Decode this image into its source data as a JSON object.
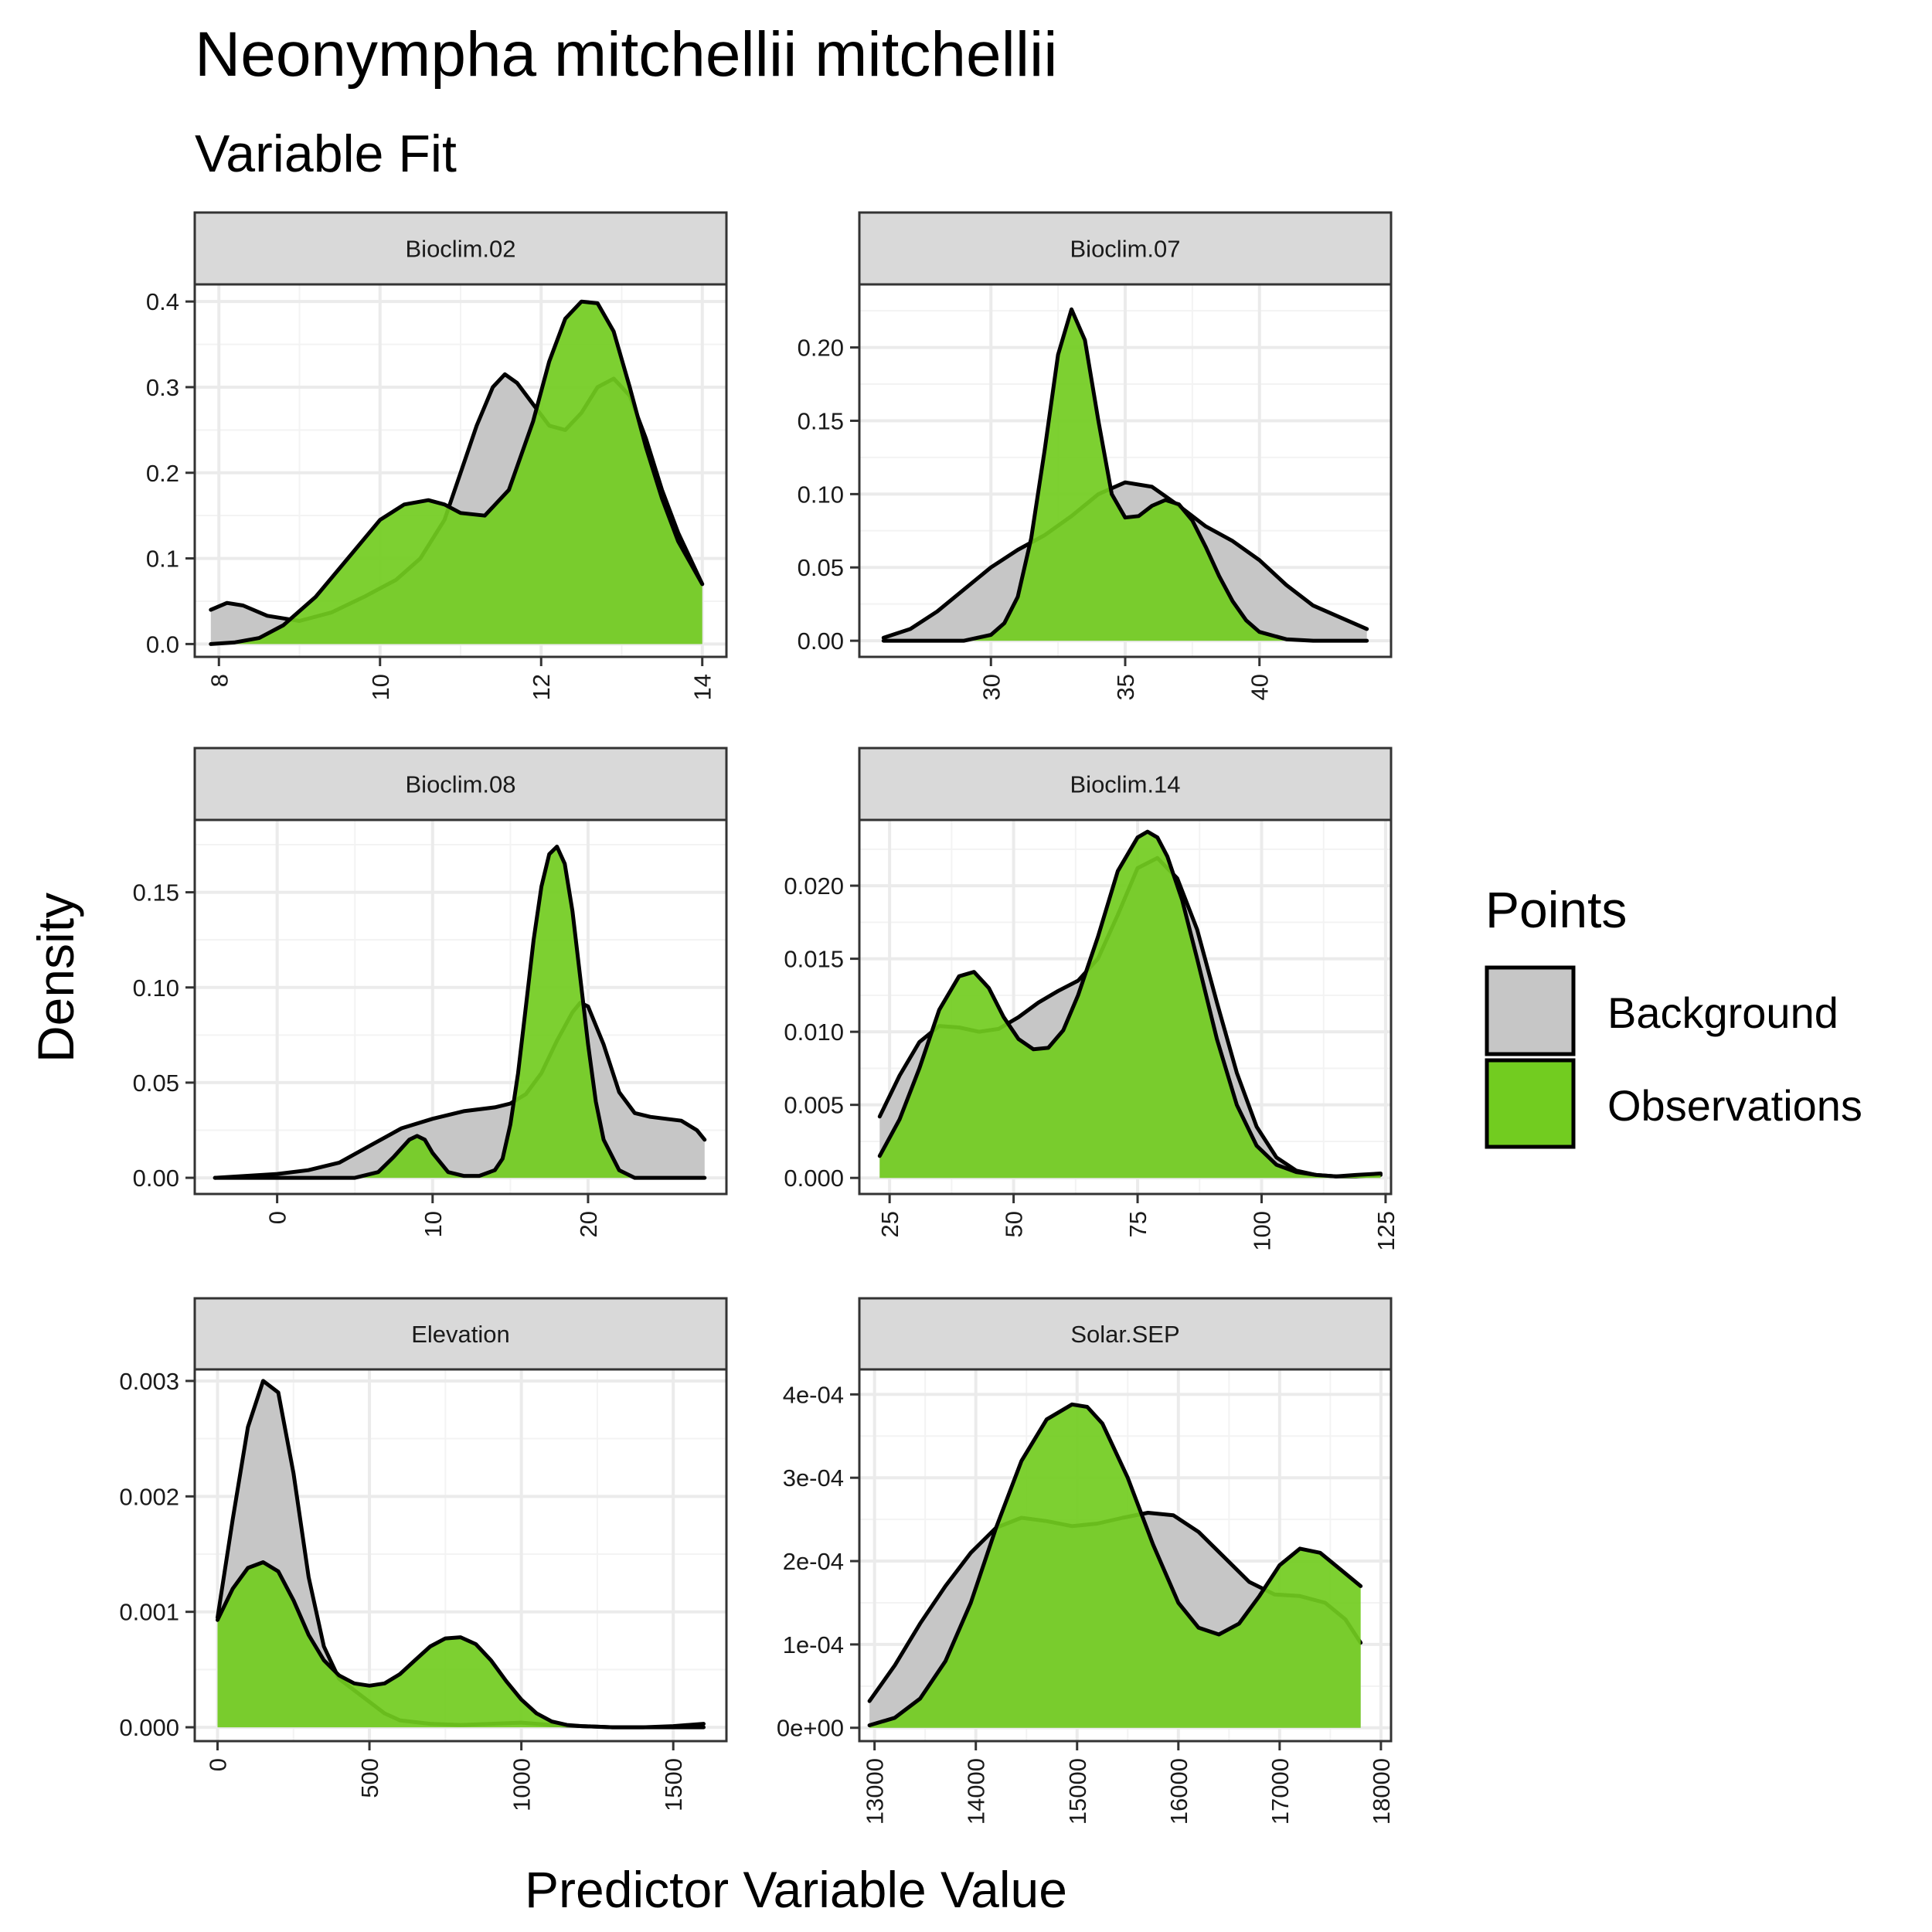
{
  "title": "Neonympha mitchellii mitchellii",
  "subtitle": "Variable Fit",
  "ylabel": "Density",
  "xlabel": "Predictor Variable Value",
  "colors": {
    "background_fill": "#c6c6c6",
    "observations_fill": "#72cc20",
    "outline": "#000000",
    "strip_fill": "#d9d9d9",
    "grid_major": "#ebebeb",
    "grid_minor": "#f3f3f3"
  },
  "legend": {
    "title": "Points",
    "items": [
      {
        "label": "Background",
        "key": "background"
      },
      {
        "label": "Observations",
        "key": "observations"
      }
    ],
    "position": "right"
  },
  "chart_data": [
    {
      "type": "area",
      "panel": "Bioclim.02",
      "xlim": [
        7.7,
        14.3
      ],
      "ylim": [
        -0.015,
        0.42
      ],
      "xticks": [
        8,
        10,
        12,
        14
      ],
      "xtick_labels": [
        "8",
        "10",
        "12",
        "14"
      ],
      "yticks": [
        0,
        0.1,
        0.2,
        0.3,
        0.4
      ],
      "ytick_labels": [
        "0.0",
        "0.1",
        "0.2",
        "0.3",
        "0.4"
      ],
      "grid": true,
      "series": [
        {
          "name": "Background",
          "x": [
            7.9,
            8.1,
            8.3,
            8.6,
            9.0,
            9.4,
            9.8,
            10.2,
            10.5,
            10.8,
            11.0,
            11.2,
            11.4,
            11.55,
            11.7,
            11.9,
            12.1,
            12.3,
            12.5,
            12.7,
            12.9,
            13.1,
            13.3,
            13.5,
            13.7,
            14.0
          ],
          "y": [
            0.04,
            0.048,
            0.045,
            0.033,
            0.027,
            0.037,
            0.055,
            0.075,
            0.1,
            0.145,
            0.2,
            0.255,
            0.3,
            0.315,
            0.305,
            0.28,
            0.255,
            0.25,
            0.27,
            0.3,
            0.31,
            0.29,
            0.24,
            0.18,
            0.13,
            0.07
          ]
        },
        {
          "name": "Observations",
          "x": [
            7.9,
            8.2,
            8.5,
            8.8,
            9.2,
            9.6,
            10.0,
            10.3,
            10.6,
            10.8,
            11.0,
            11.3,
            11.6,
            11.9,
            12.1,
            12.3,
            12.5,
            12.7,
            12.9,
            13.1,
            13.3,
            13.5,
            13.7,
            14.0
          ],
          "y": [
            0.0,
            0.002,
            0.007,
            0.022,
            0.055,
            0.1,
            0.145,
            0.163,
            0.168,
            0.163,
            0.153,
            0.15,
            0.18,
            0.26,
            0.33,
            0.38,
            0.4,
            0.398,
            0.365,
            0.3,
            0.23,
            0.17,
            0.12,
            0.07
          ]
        }
      ]
    },
    {
      "type": "area",
      "panel": "Bioclim.07",
      "xlim": [
        25.1,
        44.9
      ],
      "ylim": [
        -0.011,
        0.243
      ],
      "xticks": [
        30,
        35,
        40
      ],
      "xtick_labels": [
        "30",
        "35",
        "40"
      ],
      "yticks": [
        0,
        0.05,
        0.1,
        0.15,
        0.2
      ],
      "ytick_labels": [
        "0.00",
        "0.05",
        "0.10",
        "0.15",
        "0.20"
      ],
      "grid": true,
      "series": [
        {
          "name": "Background",
          "x": [
            26.0,
            27.0,
            28.0,
            29.0,
            30.0,
            31.0,
            32.0,
            33.0,
            34.0,
            35.0,
            36.0,
            37.0,
            38.0,
            39.0,
            40.0,
            41.0,
            42.0,
            43.0,
            44.0
          ],
          "y": [
            0.002,
            0.008,
            0.02,
            0.035,
            0.05,
            0.062,
            0.072,
            0.085,
            0.1,
            0.108,
            0.105,
            0.092,
            0.078,
            0.068,
            0.055,
            0.038,
            0.024,
            0.016,
            0.008
          ]
        },
        {
          "name": "Observations",
          "x": [
            26.0,
            29.0,
            30.0,
            30.5,
            31.0,
            31.5,
            32.0,
            32.5,
            33.0,
            33.5,
            34.0,
            34.5,
            35.0,
            35.5,
            36.0,
            36.5,
            37.0,
            37.5,
            38.0,
            38.5,
            39.0,
            39.5,
            40.0,
            41.0,
            42.0,
            44.0
          ],
          "y": [
            0.0,
            0.0,
            0.004,
            0.012,
            0.03,
            0.07,
            0.13,
            0.195,
            0.226,
            0.205,
            0.15,
            0.1,
            0.084,
            0.085,
            0.092,
            0.096,
            0.093,
            0.082,
            0.064,
            0.044,
            0.027,
            0.014,
            0.006,
            0.001,
            0.0,
            0.0
          ]
        }
      ]
    },
    {
      "type": "area",
      "panel": "Bioclim.08",
      "xlim": [
        -5.3,
        28.9
      ],
      "ylim": [
        -0.0085,
        0.188
      ],
      "xticks": [
        0,
        10,
        20
      ],
      "xtick_labels": [
        "0",
        "10",
        "20"
      ],
      "yticks": [
        0,
        0.05,
        0.1,
        0.15
      ],
      "ytick_labels": [
        "0.00",
        "0.05",
        "0.10",
        "0.15"
      ],
      "grid": true,
      "series": [
        {
          "name": "Background",
          "x": [
            -4.0,
            -2.0,
            0.0,
            2.0,
            4.0,
            6.0,
            8.0,
            10.0,
            12.0,
            14.0,
            15.0,
            16.0,
            17.0,
            18.0,
            19.0,
            19.5,
            20.0,
            21.0,
            22.0,
            23.0,
            24.0,
            25.0,
            26.0,
            27.0,
            27.5
          ],
          "y": [
            0.0,
            0.001,
            0.002,
            0.004,
            0.008,
            0.017,
            0.026,
            0.031,
            0.035,
            0.037,
            0.039,
            0.044,
            0.055,
            0.072,
            0.087,
            0.092,
            0.09,
            0.07,
            0.045,
            0.034,
            0.032,
            0.031,
            0.03,
            0.025,
            0.02
          ]
        },
        {
          "name": "Observations",
          "x": [
            -4.0,
            5.0,
            6.5,
            7.5,
            8.5,
            9.0,
            9.5,
            10.0,
            11.0,
            12.0,
            13.0,
            14.0,
            14.5,
            15.0,
            15.5,
            16.0,
            16.5,
            17.0,
            17.5,
            18.0,
            18.5,
            19.0,
            19.5,
            20.0,
            20.5,
            21.0,
            22.0,
            23.0,
            27.5
          ],
          "y": [
            0.0,
            0.0,
            0.003,
            0.011,
            0.02,
            0.022,
            0.02,
            0.013,
            0.003,
            0.001,
            0.001,
            0.004,
            0.01,
            0.028,
            0.055,
            0.09,
            0.125,
            0.153,
            0.17,
            0.174,
            0.165,
            0.14,
            0.105,
            0.07,
            0.04,
            0.02,
            0.004,
            0.0,
            0.0
          ]
        }
      ]
    },
    {
      "type": "area",
      "panel": "Bioclim.14",
      "xlim": [
        18.9,
        126.1
      ],
      "ylim": [
        -0.0011,
        0.0245
      ],
      "xticks": [
        25,
        50,
        75,
        100,
        125
      ],
      "xtick_labels": [
        "25",
        "50",
        "75",
        "100",
        "125"
      ],
      "yticks": [
        0,
        0.005,
        0.01,
        0.015,
        0.02
      ],
      "ytick_labels": [
        "0.000",
        "0.005",
        "0.010",
        "0.015",
        "0.020"
      ],
      "grid": true,
      "series": [
        {
          "name": "Background",
          "x": [
            23.0,
            27.0,
            31.0,
            35.0,
            39.0,
            43.0,
            47.0,
            51.0,
            55.0,
            59.0,
            63.0,
            67.0,
            71.0,
            75.0,
            79.0,
            83.0,
            87.0,
            91.0,
            95.0,
            99.0,
            103.0,
            107.0,
            111.0,
            115.0,
            119.0,
            124.0
          ],
          "y": [
            0.0042,
            0.007,
            0.0093,
            0.0104,
            0.0103,
            0.01,
            0.0102,
            0.011,
            0.012,
            0.0128,
            0.0135,
            0.015,
            0.018,
            0.0212,
            0.0219,
            0.0205,
            0.017,
            0.012,
            0.0072,
            0.0035,
            0.0014,
            0.0005,
            0.0002,
            0.0001,
            0.0001,
            0.0002
          ]
        },
        {
          "name": "Observations",
          "x": [
            23.0,
            27.0,
            31.0,
            35.0,
            39.0,
            42.0,
            45.0,
            48.0,
            51.0,
            54.0,
            57.0,
            60.0,
            63.0,
            67.0,
            71.0,
            75.0,
            77.0,
            79.0,
            81.0,
            84.0,
            87.0,
            91.0,
            95.0,
            99.0,
            103.0,
            107.0,
            111.0,
            115.0,
            119.0,
            124.0
          ],
          "y": [
            0.0015,
            0.004,
            0.0075,
            0.0115,
            0.0138,
            0.0141,
            0.013,
            0.011,
            0.0095,
            0.0088,
            0.0089,
            0.0101,
            0.0125,
            0.0165,
            0.021,
            0.0233,
            0.0237,
            0.0233,
            0.022,
            0.019,
            0.015,
            0.0095,
            0.005,
            0.0022,
            0.0009,
            0.0004,
            0.0002,
            0.0001,
            0.0002,
            0.0003
          ]
        }
      ]
    },
    {
      "type": "area",
      "panel": "Elevation",
      "xlim": [
        -75,
        1675
      ],
      "ylim": [
        -0.00012,
        0.0031
      ],
      "xticks": [
        0,
        500,
        1000,
        1500
      ],
      "xtick_labels": [
        "0",
        "500",
        "1000",
        "1500"
      ],
      "yticks": [
        0,
        0.001,
        0.002,
        0.003
      ],
      "ytick_labels": [
        "0.000",
        "0.001",
        "0.002",
        "0.003"
      ],
      "grid": true,
      "series": [
        {
          "name": "Background",
          "x": [
            0,
            50,
            100,
            150,
            200,
            250,
            300,
            350,
            400,
            450,
            500,
            550,
            600,
            700,
            800,
            900,
            1000,
            1100,
            1200,
            1300,
            1400,
            1500,
            1600
          ],
          "y": [
            0.00095,
            0.0018,
            0.0026,
            0.003,
            0.0029,
            0.0022,
            0.0013,
            0.0007,
            0.00042,
            0.00032,
            0.00022,
            0.00012,
            6e-05,
            3e-05,
            2e-05,
            3e-05,
            4e-05,
            2e-05,
            1e-05,
            0.0,
            0.0,
            1e-05,
            3e-05
          ]
        },
        {
          "name": "Observations",
          "x": [
            0,
            50,
            100,
            150,
            200,
            250,
            300,
            350,
            400,
            450,
            500,
            550,
            600,
            650,
            700,
            750,
            800,
            850,
            900,
            950,
            1000,
            1050,
            1100,
            1150,
            1200,
            1300,
            1400,
            1500,
            1600
          ],
          "y": [
            0.00093,
            0.0012,
            0.00138,
            0.00143,
            0.00135,
            0.0011,
            0.0008,
            0.00058,
            0.00045,
            0.00038,
            0.00036,
            0.00038,
            0.00046,
            0.00058,
            0.0007,
            0.00077,
            0.00078,
            0.00072,
            0.00058,
            0.0004,
            0.00024,
            0.00012,
            5e-05,
            2e-05,
            1e-05,
            0.0,
            0.0,
            0.0,
            0.0
          ]
        }
      ]
    },
    {
      "type": "area",
      "panel": "Solar.SEP",
      "xlim": [
        12850,
        18100
      ],
      "ylim": [
        -1.6e-05,
        0.00043
      ],
      "xticks": [
        13000,
        14000,
        15000,
        16000,
        17000,
        18000
      ],
      "xtick_labels": [
        "13000",
        "14000",
        "15000",
        "16000",
        "17000",
        "18000"
      ],
      "yticks": [
        0,
        0.0001,
        0.0002,
        0.0003,
        0.0004
      ],
      "ytick_labels": [
        "0e+00",
        "1e-04",
        "2e-04",
        "3e-04",
        "4e-04"
      ],
      "grid": true,
      "series": [
        {
          "name": "Background",
          "x": [
            12950,
            13200,
            13450,
            13700,
            13950,
            14200,
            14450,
            14700,
            14950,
            15200,
            15450,
            15700,
            15950,
            16200,
            16450,
            16700,
            16950,
            17200,
            17450,
            17650,
            17800
          ],
          "y": [
            3.2e-05,
            7.5e-05,
            0.000125,
            0.00017,
            0.00021,
            0.00024,
            0.000252,
            0.000248,
            0.000242,
            0.000245,
            0.000252,
            0.000258,
            0.000255,
            0.000235,
            0.000205,
            0.000175,
            0.00016,
            0.000158,
            0.00015,
            0.00013,
            0.000102
          ]
        },
        {
          "name": "Observations",
          "x": [
            12950,
            13200,
            13450,
            13700,
            13950,
            14200,
            14450,
            14700,
            14950,
            15100,
            15250,
            15500,
            15750,
            16000,
            16200,
            16400,
            16600,
            16800,
            17000,
            17200,
            17400,
            17600,
            17800
          ],
          "y": [
            3e-06,
            1.2e-05,
            3.5e-05,
            8e-05,
            0.00015,
            0.00024,
            0.00032,
            0.00037,
            0.000388,
            0.000385,
            0.000365,
            0.0003,
            0.00022,
            0.00015,
            0.00012,
            0.000112,
            0.000125,
            0.000158,
            0.000195,
            0.000215,
            0.00021,
            0.00019,
            0.00017
          ]
        }
      ]
    }
  ]
}
